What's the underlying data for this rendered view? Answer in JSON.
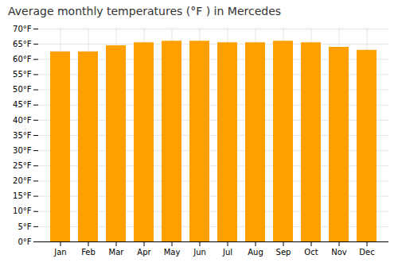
{
  "chart_data": {
    "type": "bar",
    "title": "Average monthly temperatures (°F ) in Mercedes",
    "categories": [
      "Jan",
      "Feb",
      "Mar",
      "Apr",
      "May",
      "Jun",
      "Jul",
      "Aug",
      "Sep",
      "Oct",
      "Nov",
      "Dec"
    ],
    "values": [
      62.5,
      62.5,
      64.5,
      65.5,
      66.0,
      66.0,
      65.5,
      65.5,
      66.0,
      65.5,
      64.0,
      63.0
    ],
    "color": "#FFA000",
    "ylim": [
      0,
      70
    ],
    "yticks": [
      {
        "value": 0,
        "label": "0°F"
      },
      {
        "value": 5,
        "label": "5°F"
      },
      {
        "value": 10,
        "label": "10°F"
      },
      {
        "value": 15,
        "label": "15°F"
      },
      {
        "value": 20,
        "label": "20°F"
      },
      {
        "value": 25,
        "label": "25°F"
      },
      {
        "value": 30,
        "label": "30°F"
      },
      {
        "value": 35,
        "label": "35°F"
      },
      {
        "value": 40,
        "label": "40°F"
      },
      {
        "value": 45,
        "label": "45°F"
      },
      {
        "value": 50,
        "label": "50°F"
      },
      {
        "value": 55,
        "label": "55°F"
      },
      {
        "value": 60,
        "label": "60°F"
      },
      {
        "value": 65,
        "label": "65°F"
      },
      {
        "value": 70,
        "label": "70°F"
      }
    ],
    "grid": true
  }
}
